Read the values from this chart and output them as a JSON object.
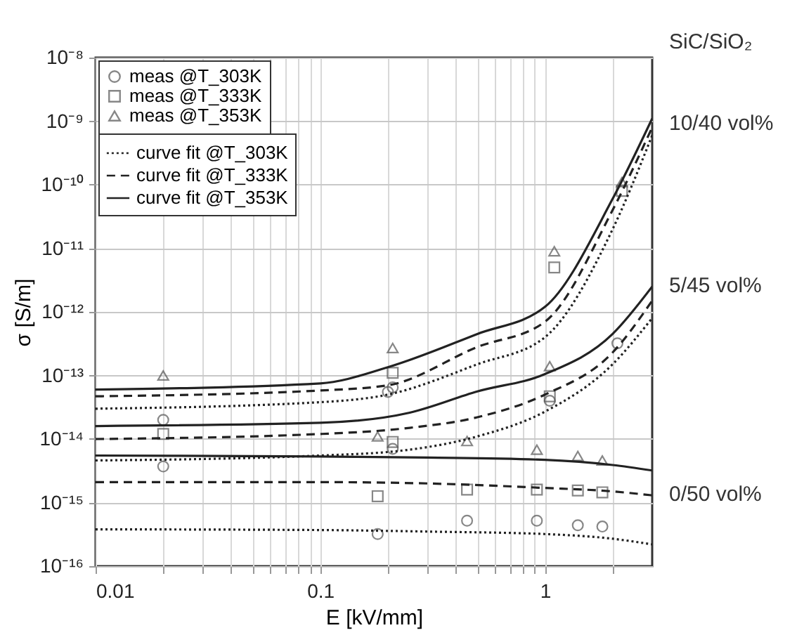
{
  "chart_data": {
    "type": "scatter",
    "xlabel": "E [kV/mm]",
    "ylabel": "σ [S/m]",
    "log": "xy",
    "grid": true,
    "legend": "top left",
    "xlim": [
      0.01,
      3
    ],
    "ylim": [
      1e-16,
      1e-08
    ],
    "xticks": [
      0.01,
      {
        "value": 0.02,
        "label": null
      },
      {
        "value": 0.03,
        "label": null
      },
      {
        "value": 0.04,
        "label": null
      },
      {
        "value": 0.05,
        "label": null
      },
      {
        "value": 0.06,
        "label": null
      },
      {
        "value": 0.07,
        "label": null
      },
      {
        "value": 0.08,
        "label": null
      },
      {
        "value": 0.09,
        "label": null
      },
      0.1,
      {
        "value": 0.2,
        "label": null
      },
      {
        "value": 0.3,
        "label": null
      },
      {
        "value": 0.4,
        "label": null
      },
      {
        "value": 0.5,
        "label": null
      },
      {
        "value": 0.6,
        "label": null
      },
      {
        "value": 0.7,
        "label": null
      },
      {
        "value": 0.8,
        "label": null
      },
      {
        "value": 0.9,
        "label": null
      },
      1,
      {
        "value": 2,
        "label": null
      }
    ],
    "yticks": [
      {
        "value": 1e-16,
        "label": "10⁻¹⁶"
      },
      {
        "value": 1e-15,
        "label": "10⁻¹⁵"
      },
      {
        "value": 1e-14,
        "label": "10⁻¹⁴"
      },
      {
        "value": 1e-13,
        "label": "10⁻¹³"
      },
      {
        "value": 1e-12,
        "label": "10⁻¹²"
      },
      {
        "value": 1e-11,
        "label": "10⁻¹¹"
      },
      {
        "value": 1e-10,
        "label": "10⁻¹⁰"
      },
      {
        "value": 1e-09,
        "label": "10⁻⁹"
      },
      {
        "value": 1e-08,
        "label": "10⁻⁸"
      }
    ],
    "annotations": [
      "SiC/SiO₂",
      "10/40 vol%",
      "5/45 vol%",
      "0/50 vol%"
    ],
    "series": [
      {
        "name": "meas @T_303K",
        "marker": "circle",
        "color": "#555555",
        "x": [
          0.02,
          0.02,
          0.18,
          0.2,
          0.21,
          0.21,
          0.45,
          0.92,
          1.05,
          1.4,
          1.8,
          2.1
        ],
        "values": [
          2e-14,
          3.7e-15,
          3.2e-16,
          5.5e-14,
          6.5e-14,
          7e-15,
          5.2e-16,
          5.2e-16,
          4e-14,
          4.4e-16,
          4.2e-16,
          3.2e-13
        ]
      },
      {
        "name": "meas @T_333K",
        "marker": "square",
        "color": "#555555",
        "x": [
          0.02,
          0.18,
          0.21,
          0.21,
          0.45,
          0.92,
          1.05,
          1.1,
          1.4,
          1.8,
          2.2
        ],
        "values": [
          1.2e-14,
          1.26e-15,
          1.1e-13,
          9e-15,
          1.6e-15,
          1.6e-15,
          4.7e-14,
          5e-12,
          1.55e-15,
          1.45e-15,
          8e-11
        ]
      },
      {
        "name": "meas @T_353K",
        "marker": "triangle",
        "color": "#555555",
        "x": [
          0.02,
          0.18,
          0.21,
          0.45,
          0.92,
          1.05,
          1.1,
          1.4,
          1.8,
          2.2
        ],
        "values": [
          1e-13,
          1.1e-14,
          2.7e-13,
          9.3e-15,
          6.8e-15,
          1.4e-13,
          9e-12,
          5.4e-15,
          4.6e-15,
          1.1e-10
        ]
      },
      {
        "name": "curve fit @T_303K",
        "type": "line",
        "line_style": "dotted",
        "color": "#222222",
        "x": [
          0.01,
          0.1,
          0.3,
          1,
          2,
          3
        ],
        "values": [
          3.8e-16,
          3.7e-16,
          3.5e-16,
          3.2e-16,
          2.7e-16,
          2.2e-16
        ]
      },
      {
        "name": "curve fit @T_333K",
        "type": "line",
        "line_style": "dashed",
        "color": "#222222",
        "x": [
          0.01,
          0.1,
          0.3,
          1,
          2,
          3
        ],
        "values": [
          2.1e-15,
          2.1e-15,
          2e-15,
          1.7e-15,
          1.5e-15,
          1.3e-15
        ]
      },
      {
        "name": "curve fit @T_353K",
        "type": "line",
        "line_style": "solid",
        "color": "#222222",
        "x": [
          0.01,
          0.1,
          0.3,
          1,
          2,
          3
        ],
        "values": [
          5.5e-15,
          5.3e-15,
          5.1e-15,
          4.7e-15,
          3.9e-15,
          3.2e-15
        ]
      },
      {
        "type": "line",
        "line_style": "dotted",
        "color": "#222222",
        "x": [
          0.01,
          0.1,
          0.25,
          0.5,
          1,
          2,
          3
        ],
        "values": [
          4.6e-15,
          5.5e-15,
          6.8e-15,
          1.1e-14,
          2.7e-14,
          1.5e-13,
          8e-13
        ]
      },
      {
        "type": "line",
        "line_style": "dashed",
        "color": "#222222",
        "x": [
          0.01,
          0.1,
          0.25,
          0.5,
          1,
          2,
          3
        ],
        "values": [
          1e-14,
          1.2e-14,
          1.5e-14,
          2.2e-14,
          5e-14,
          2.3e-13,
          1.5e-12
        ]
      },
      {
        "type": "line",
        "line_style": "solid",
        "color": "#222222",
        "x": [
          0.01,
          0.1,
          0.25,
          0.5,
          1,
          2,
          3
        ],
        "values": [
          1.6e-14,
          1.8e-14,
          2.6e-14,
          5.6e-14,
          1.05e-13,
          4.5e-13,
          2.5e-12
        ]
      },
      {
        "type": "line",
        "line_style": "dotted",
        "color": "#222222",
        "x": [
          0.01,
          0.1,
          0.2,
          0.5,
          1,
          2,
          3
        ],
        "values": [
          3e-14,
          3.8e-14,
          5e-14,
          1.5e-13,
          4e-13,
          2e-11,
          6e-10
        ]
      },
      {
        "type": "line",
        "line_style": "dashed",
        "color": "#222222",
        "x": [
          0.01,
          0.1,
          0.2,
          0.5,
          1,
          2,
          3
        ],
        "values": [
          4.7e-14,
          5.8e-14,
          7e-14,
          2.8e-13,
          7e-13,
          4e-11,
          8e-10
        ]
      },
      {
        "type": "line",
        "line_style": "solid",
        "color": "#222222",
        "x": [
          0.01,
          0.1,
          0.2,
          0.5,
          1,
          2,
          3
        ],
        "values": [
          6e-14,
          7.5e-14,
          1.35e-13,
          4.5e-13,
          1.2e-12,
          6e-11,
          1.1e-09
        ]
      }
    ]
  }
}
